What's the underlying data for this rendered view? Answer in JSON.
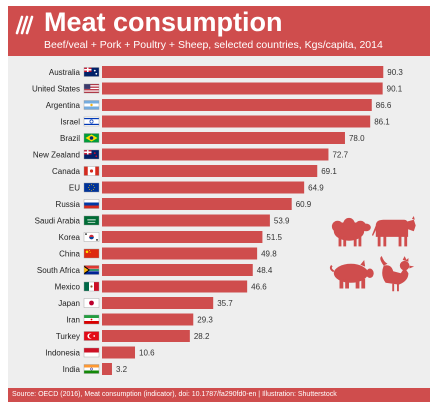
{
  "header": {
    "title": "Meat consumption",
    "subtitle": "Beef/veal + Pork + Poultry + Sheep, selected countries, Kgs/capita, 2014",
    "logo_icon": "oecd-logo-icon"
  },
  "footer": {
    "source": "Source: OECD (2016), Meat consumption (indicator), doi: 10.1787/fa290fd0-en | Illustration: Shutterstock"
  },
  "colors": {
    "bar": "#cf4d4d",
    "accent": "#cf4d4d",
    "panel": "#eeeeee",
    "animal": "#cf4d4d"
  },
  "illustration_icons": [
    "sheep-icon",
    "cow-icon",
    "pig-icon",
    "rooster-icon"
  ],
  "chart_data": {
    "type": "bar",
    "orientation": "horizontal",
    "title": "Meat consumption",
    "subtitle": "Beef/veal + Pork + Poultry + Sheep, selected countries, Kgs/capita, 2014",
    "categories": [
      "Australia",
      "United States",
      "Argentina",
      "Israel",
      "Brazil",
      "New Zealand",
      "Canada",
      "EU",
      "Russia",
      "Saudi Arabia",
      "Korea",
      "China",
      "South Africa",
      "Mexico",
      "Japan",
      "Iran",
      "Turkey",
      "Indonesia",
      "India"
    ],
    "values": [
      90.3,
      90.1,
      86.6,
      86.1,
      78.0,
      72.7,
      69.1,
      64.9,
      60.9,
      53.9,
      51.5,
      49.8,
      48.4,
      46.6,
      35.7,
      29.3,
      28.2,
      10.6,
      3.2
    ],
    "value_labels": [
      "90.3",
      "90.1",
      "86.6",
      "86.1",
      "78.0",
      "72.7",
      "69.1",
      "64.9",
      "60.9",
      "53.9",
      "51.5",
      "49.8",
      "48.4",
      "46.6",
      "35.7",
      "29.3",
      "28.2",
      "10.6",
      "3.2"
    ],
    "flag_icons": [
      "australia-flag-icon",
      "united-states-flag-icon",
      "argentina-flag-icon",
      "israel-flag-icon",
      "brazil-flag-icon",
      "new-zealand-flag-icon",
      "canada-flag-icon",
      "eu-flag-icon",
      "russia-flag-icon",
      "saudi-arabia-flag-icon",
      "korea-flag-icon",
      "china-flag-icon",
      "south-africa-flag-icon",
      "mexico-flag-icon",
      "japan-flag-icon",
      "iran-flag-icon",
      "turkey-flag-icon",
      "indonesia-flag-icon",
      "india-flag-icon"
    ],
    "xlim": [
      0,
      100
    ],
    "grid": false,
    "legend": "none"
  }
}
